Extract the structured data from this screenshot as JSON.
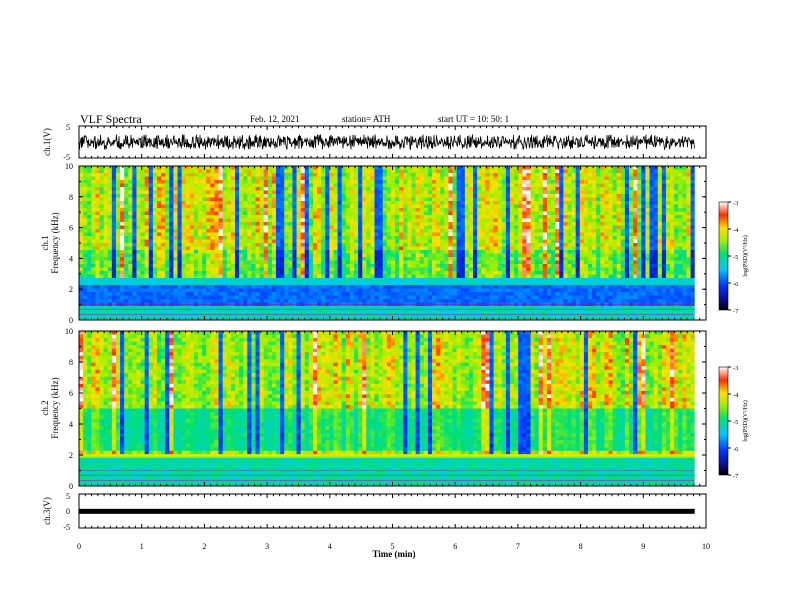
{
  "header": {
    "title": "VLF Spectra",
    "date": "Feb. 12, 2021",
    "station": "station= ATH",
    "start": "start  UT  =   10: 50: 1"
  },
  "chart_data": [
    {
      "type": "line",
      "panel": "ch1-waveform",
      "ylabel": "ch.1(V)",
      "ylim": [
        -5,
        5
      ],
      "yticks": [
        "5",
        "-5"
      ],
      "x_range_min": [
        0,
        9.82
      ],
      "amplitude_range_V": [
        -2.6,
        2.4
      ],
      "color": "#000000"
    },
    {
      "type": "heatmap",
      "panel": "ch1-spectrogram",
      "ylabel": "ch.1\nFrequency  (kHz)",
      "ylim": [
        0,
        10
      ],
      "yticks": [
        "0",
        "2",
        "4",
        "6",
        "8",
        "10"
      ],
      "x_range_min": [
        0,
        9.82
      ],
      "quiet_band_kHz": [
        1,
        2.3
      ],
      "colorbar": {
        "label": "log(PSD)(V²/Hz)",
        "range": [
          -7,
          -3
        ],
        "ticks": [
          "-3",
          "-4",
          "-5",
          "-6",
          "-7"
        ]
      }
    },
    {
      "type": "heatmap",
      "panel": "ch2-spectrogram",
      "ylabel": "ch.2\nFrequency  (kHz)",
      "ylim": [
        0,
        10
      ],
      "yticks": [
        "0",
        "2",
        "4",
        "6",
        "8",
        "10"
      ],
      "x_range_min": [
        0,
        9.82
      ],
      "bright_line_kHz": 2,
      "colorbar": {
        "label": "log(PSD)(V²/Hz)",
        "range": [
          -7,
          -3
        ],
        "ticks": [
          "-3",
          "-4",
          "-5",
          "-6",
          "-7"
        ]
      }
    },
    {
      "type": "line",
      "panel": "ch3-waveform",
      "ylabel": "ch.3(V)",
      "ylim": [
        -5,
        5
      ],
      "yticks": [
        "5",
        "0",
        "-5"
      ],
      "x_range_min": [
        0,
        9.82
      ],
      "constant_V": -0.1,
      "color": "#000000"
    }
  ],
  "xaxis": {
    "label": "Time  (min)",
    "range": [
      0,
      10
    ],
    "ticks": [
      "0",
      "1",
      "2",
      "3",
      "4",
      "5",
      "6",
      "7",
      "8",
      "9",
      "10"
    ]
  }
}
